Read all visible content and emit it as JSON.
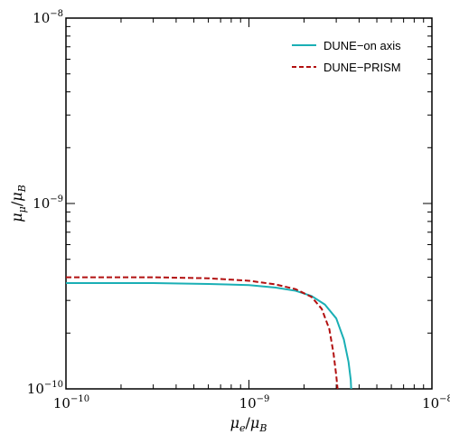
{
  "chart_data": {
    "type": "line",
    "title": "",
    "xlabel": {
      "base": "μ",
      "sub": "e",
      "slash": "/",
      "base2": "μ",
      "sub2": "B"
    },
    "ylabel": {
      "base": "μ",
      "sub": "μ",
      "slash": "/",
      "base2": "μ",
      "sub2": "B"
    },
    "xscale": "log",
    "yscale": "log",
    "xlim": [
      1e-10,
      1e-08
    ],
    "ylim": [
      1e-10,
      1e-08
    ],
    "x_ticks": [
      {
        "value": 1e-10,
        "base": "10",
        "exp": "−10"
      },
      {
        "value": 1e-09,
        "base": "10",
        "exp": "−9"
      },
      {
        "value": 1e-08,
        "base": "10",
        "exp": "−8"
      }
    ],
    "y_ticks": [
      {
        "value": 1e-10,
        "base": "10",
        "exp": "−10"
      },
      {
        "value": 1e-09,
        "base": "10",
        "exp": "−9"
      },
      {
        "value": 1e-08,
        "base": "10",
        "exp": "−8"
      }
    ],
    "grid": false,
    "legend_position": "top-right",
    "series": [
      {
        "name": "DUNE−on axis",
        "color": "#1aafb5",
        "style": "solid",
        "points": [
          [
            1e-10,
            3.72e-10
          ],
          [
            3e-10,
            3.72e-10
          ],
          [
            6e-10,
            3.68e-10
          ],
          [
            1e-09,
            3.63e-10
          ],
          [
            1.4e-09,
            3.52e-10
          ],
          [
            1.8e-09,
            3.38e-10
          ],
          [
            2.2e-09,
            3.17e-10
          ],
          [
            2.6e-09,
            2.85e-10
          ],
          [
            3e-09,
            2.4e-10
          ],
          [
            3.3e-09,
            1.85e-10
          ],
          [
            3.5e-09,
            1.4e-10
          ],
          [
            3.6e-09,
            1.12e-10
          ],
          [
            3.62e-09,
            1e-10
          ]
        ]
      },
      {
        "name": "DUNE−PRISM",
        "color": "#b21010",
        "style": "dashed",
        "points": [
          [
            1e-10,
            4e-10
          ],
          [
            3e-10,
            4e-10
          ],
          [
            6e-10,
            3.95e-10
          ],
          [
            1e-09,
            3.83e-10
          ],
          [
            1.4e-09,
            3.66e-10
          ],
          [
            1.8e-09,
            3.45e-10
          ],
          [
            2.2e-09,
            3.13e-10
          ],
          [
            2.5e-09,
            2.7e-10
          ],
          [
            2.75e-09,
            2.1e-10
          ],
          [
            2.9e-09,
            1.55e-10
          ],
          [
            3e-09,
            1.18e-10
          ],
          [
            3.05e-09,
            1e-10
          ]
        ]
      }
    ]
  }
}
